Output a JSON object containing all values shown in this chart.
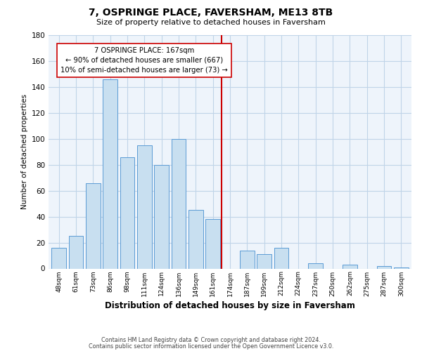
{
  "title": "7, OSPRINGE PLACE, FAVERSHAM, ME13 8TB",
  "subtitle": "Size of property relative to detached houses in Faversham",
  "xlabel": "Distribution of detached houses by size in Faversham",
  "ylabel": "Number of detached properties",
  "bar_labels": [
    "48sqm",
    "61sqm",
    "73sqm",
    "86sqm",
    "98sqm",
    "111sqm",
    "124sqm",
    "136sqm",
    "149sqm",
    "161sqm",
    "174sqm",
    "187sqm",
    "199sqm",
    "212sqm",
    "224sqm",
    "237sqm",
    "250sqm",
    "262sqm",
    "275sqm",
    "287sqm",
    "300sqm"
  ],
  "bar_values": [
    16,
    25,
    66,
    146,
    86,
    95,
    80,
    100,
    45,
    38,
    0,
    14,
    11,
    16,
    0,
    4,
    0,
    3,
    0,
    2,
    1
  ],
  "bar_color": "#c8dff0",
  "bar_edge_color": "#5b9bd5",
  "vline_x": 9.5,
  "vline_color": "#cc0000",
  "annotation_line1": "7 OSPRINGE PLACE: 167sqm",
  "annotation_line2": "← 90% of detached houses are smaller (667)",
  "annotation_line3": "10% of semi-detached houses are larger (73) →",
  "annotation_box_edge": "#cc0000",
  "ylim": [
    0,
    180
  ],
  "yticks": [
    0,
    20,
    40,
    60,
    80,
    100,
    120,
    140,
    160,
    180
  ],
  "footer1": "Contains HM Land Registry data © Crown copyright and database right 2024.",
  "footer2": "Contains public sector information licensed under the Open Government Licence v3.0.",
  "bg_color": "#ffffff",
  "grid_color": "#dce9f5"
}
